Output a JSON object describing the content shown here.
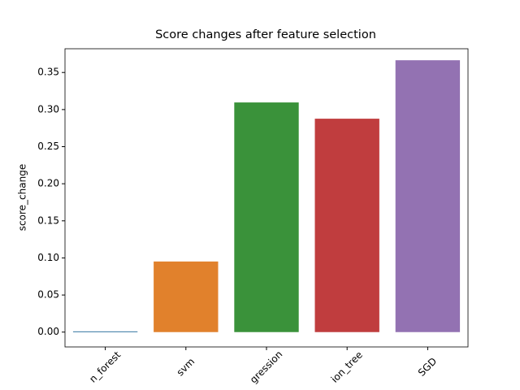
{
  "chart_data": {
    "type": "bar",
    "title": "Score changes after feature selection",
    "y_label": "score_change",
    "categories": [
      "n_forest",
      "svm",
      "gression",
      "ion_tree",
      "SGD"
    ],
    "values": [
      0.001,
      0.0952,
      0.3096,
      0.2877,
      0.3665
    ],
    "colors": [
      "#3274a1",
      "#e1812c",
      "#3a923a",
      "#c03d3e",
      "#9372b2"
    ],
    "ylim": [
      -0.02,
      0.382
    ],
    "yticks": [
      {
        "value": 0,
        "label": "0.00"
      },
      {
        "value": 0.05,
        "label": "0.05"
      },
      {
        "value": 0.1,
        "label": "0.10"
      },
      {
        "value": 0.15,
        "label": "0.15"
      },
      {
        "value": 0.2,
        "label": "0.20"
      },
      {
        "value": 0.25,
        "label": "0.25"
      },
      {
        "value": 0.3,
        "label": "0.30"
      },
      {
        "value": 0.35,
        "label": "0.35"
      }
    ]
  }
}
